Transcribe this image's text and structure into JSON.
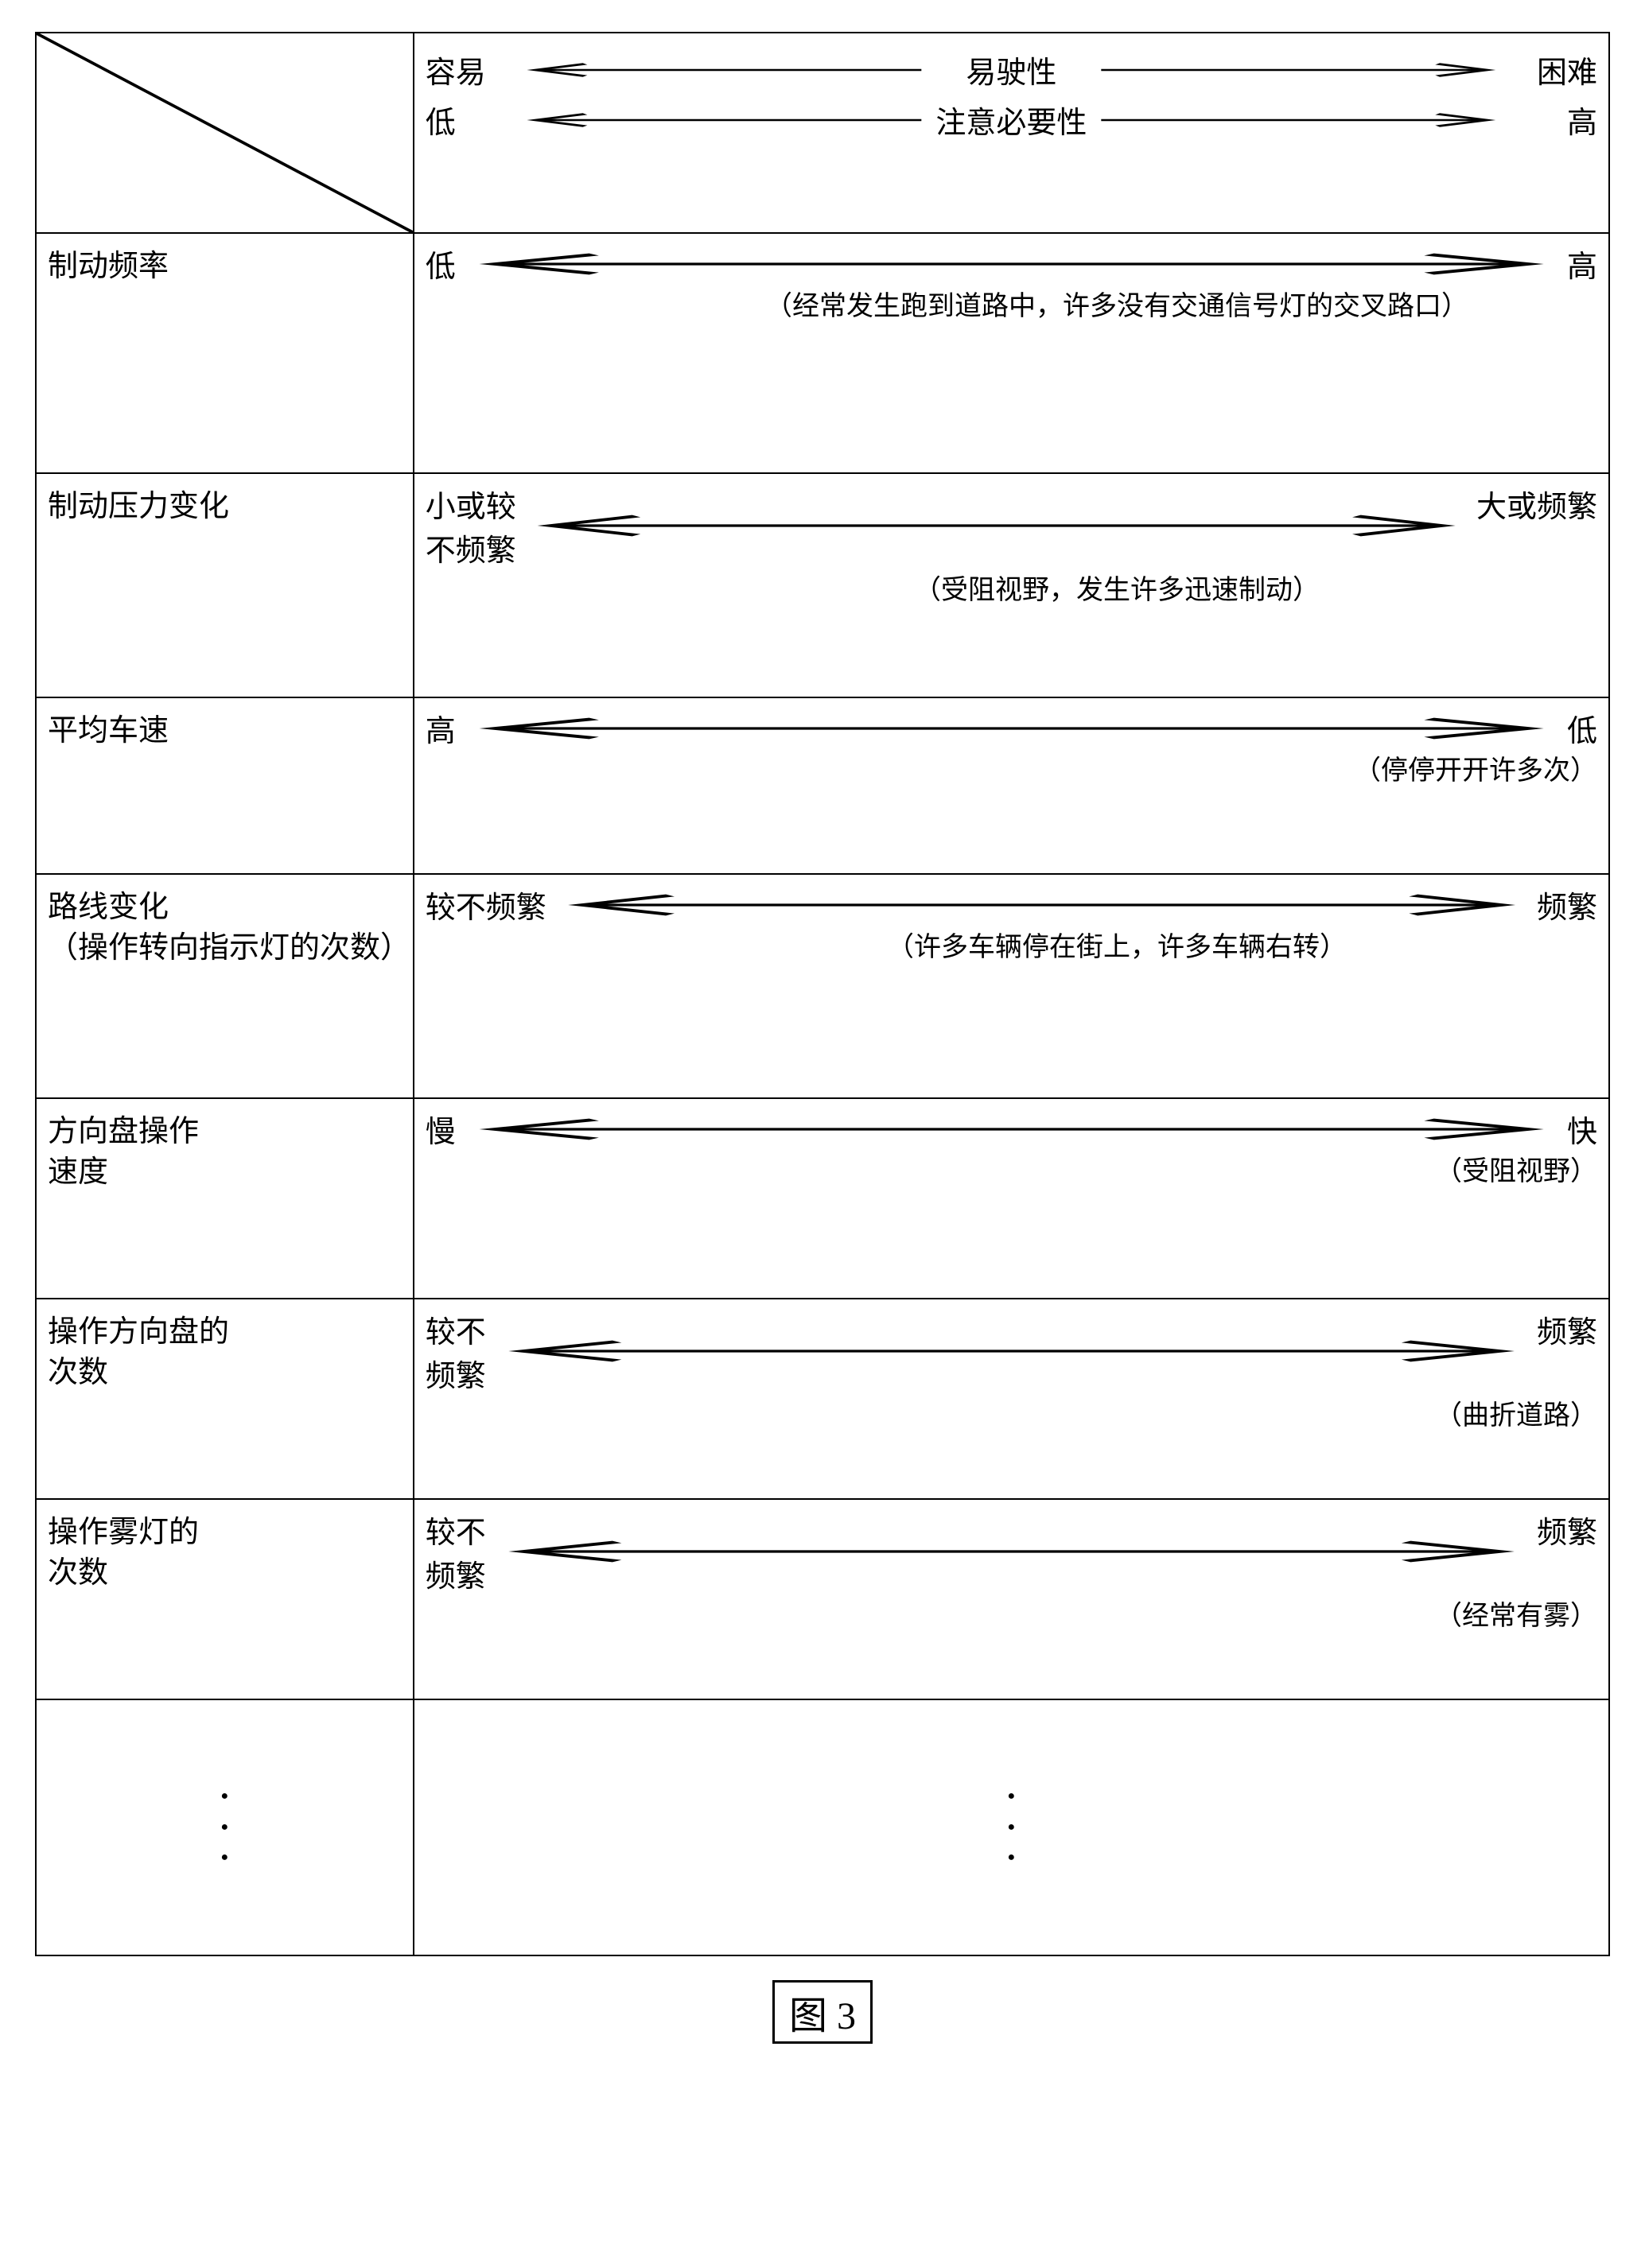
{
  "figureLabel": "图 3",
  "header": {
    "line1": {
      "left": "容易",
      "center": "易驶性",
      "right": "困难"
    },
    "line2": {
      "left": "低",
      "center": "注意必要性",
      "right": "高"
    }
  },
  "rows": [
    {
      "id": "brakefreq",
      "param": "制动频率",
      "left": "低",
      "right": "高",
      "note": "（经常发生跑到道路中，许多没有交通信号灯的交叉路口）",
      "noteAlign": "center"
    },
    {
      "id": "brakepress",
      "param": "制动压力变化",
      "left": "小或较\n不频繁",
      "right": "大或频繁",
      "note": "（受阻视野，发生许多迅速制动）",
      "noteAlign": "center"
    },
    {
      "id": "speed",
      "param": "平均车速",
      "left": "高",
      "right": "低",
      "note": "（停停开开许多次）",
      "noteAlign": "right"
    },
    {
      "id": "route",
      "param": "路线变化\n（操作转向指示灯的次数）",
      "left": "较不频繁",
      "right": "频繁",
      "note": "（许多车辆停在街上，许多车辆右转）",
      "noteAlign": "center"
    },
    {
      "id": "wheel-speed",
      "param": "方向盘操作\n速度",
      "left": "慢",
      "right": "快",
      "note": "（受阻视野）",
      "noteAlign": "right"
    },
    {
      "id": "wheel-count",
      "param": "操作方向盘的\n次数",
      "left": "较不\n频繁",
      "right": "频繁",
      "note": "（曲折道路）",
      "noteAlign": "right"
    },
    {
      "id": "fog",
      "param": "操作雾灯的\n次数",
      "left": "较不\n频繁",
      "right": "频繁",
      "note": "（经常有雾）",
      "noteAlign": "right"
    }
  ]
}
